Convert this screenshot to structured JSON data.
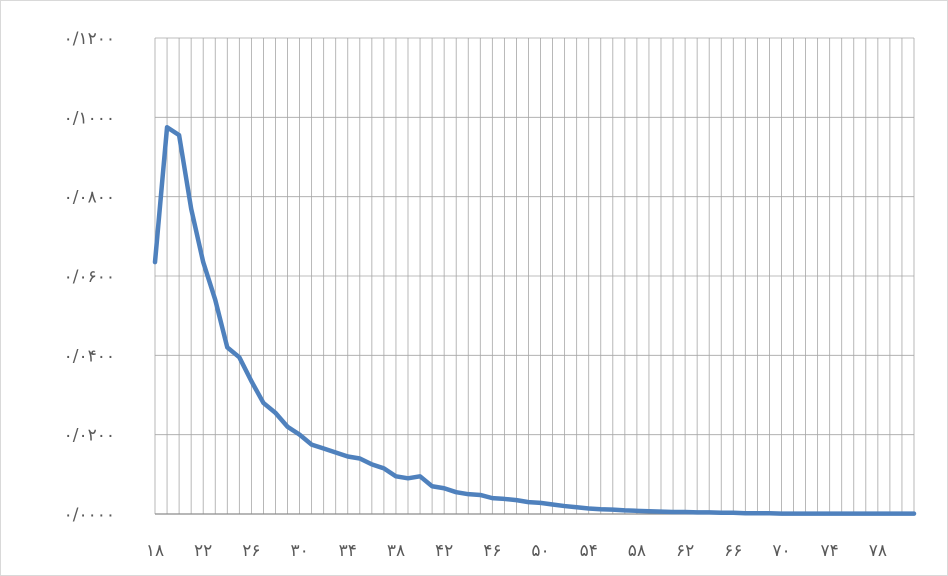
{
  "chart_data": {
    "type": "line",
    "title": "",
    "xlabel": "",
    "ylabel": "",
    "xlim": [
      18,
      81
    ],
    "ylim": [
      0,
      0.12
    ],
    "grid": true,
    "legend": "none",
    "line_color": "#4F81BD",
    "x_tick_labels": [
      "۱۸",
      "۲۲",
      "۲۶",
      "۳۰",
      "۳۴",
      "۳۸",
      "۴۲",
      "۴۶",
      "۵۰",
      "۵۴",
      "۵۸",
      "۶۲",
      "۶۶",
      "۷۰",
      "۷۴",
      "۷۸"
    ],
    "y_tick_labels": [
      "۰/۰۰۰۰",
      "۰/۰۲۰۰",
      "۰/۰۴۰۰",
      "۰/۰۶۰۰",
      "۰/۰۸۰۰",
      "۰/۱۰۰۰",
      "۰/۱۲۰۰"
    ],
    "y_tick_values": [
      0,
      0.02,
      0.04,
      0.06,
      0.08,
      0.1,
      0.12
    ],
    "x": [
      18,
      19,
      20,
      21,
      22,
      23,
      24,
      25,
      26,
      27,
      28,
      29,
      30,
      31,
      32,
      33,
      34,
      35,
      36,
      37,
      38,
      39,
      40,
      41,
      42,
      43,
      44,
      45,
      46,
      47,
      48,
      49,
      50,
      51,
      52,
      53,
      54,
      55,
      56,
      57,
      58,
      59,
      60,
      61,
      62,
      63,
      64,
      65,
      66,
      67,
      68,
      69,
      70,
      71,
      72,
      73,
      74,
      75,
      76,
      77,
      78,
      79,
      80,
      81
    ],
    "series": [
      {
        "values": [
          0.0635,
          0.0975,
          0.0955,
          0.077,
          0.0635,
          0.054,
          0.042,
          0.0395,
          0.0335,
          0.028,
          0.0255,
          0.022,
          0.02,
          0.0175,
          0.0165,
          0.0155,
          0.0145,
          0.014,
          0.0125,
          0.0115,
          0.0095,
          0.009,
          0.0095,
          0.007,
          0.0065,
          0.0055,
          0.005,
          0.0048,
          0.004,
          0.0038,
          0.0035,
          0.003,
          0.0028,
          0.0024,
          0.002,
          0.0017,
          0.0014,
          0.0012,
          0.0011,
          0.0009,
          0.0008,
          0.0007,
          0.0006,
          0.0005,
          0.0005,
          0.0004,
          0.0004,
          0.0003,
          0.0003,
          0.0002,
          0.0002,
          0.0002,
          0.0001,
          0.0001,
          0.0001,
          0.0001,
          0.0001,
          0.0001,
          0.0001,
          0.0001,
          0.0001,
          0.0001,
          0.0001,
          0.0001
        ]
      }
    ]
  }
}
